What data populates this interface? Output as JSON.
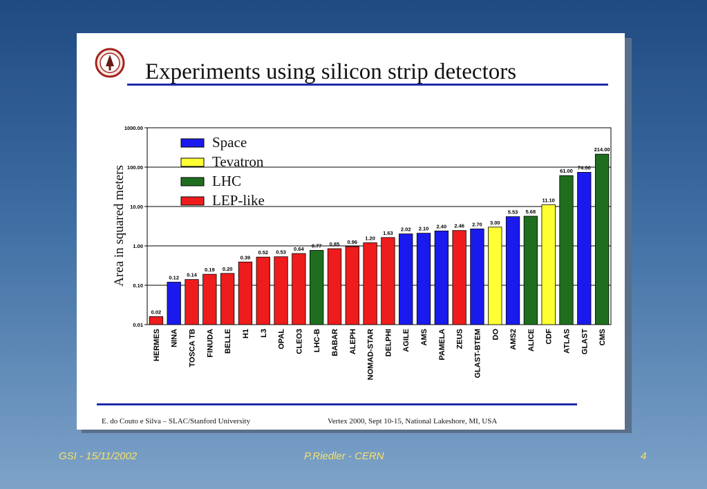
{
  "slide": {
    "title": "Experiments using silicon strip detectors",
    "credit_left": "E. do Couto e Silva – SLAC/Stanford University",
    "credit_right": "Vertex 2000,  Sept 10-15, National Lakeshore, MI, USA",
    "logo_icon": "stanford-seal-icon"
  },
  "footer": {
    "left": "GSI - 15/11/2002",
    "center": "P.Riedler - CERN",
    "right": "4"
  },
  "colors": {
    "Space": "#1a1aee",
    "Tevatron": "#ffff33",
    "LHC": "#1f6e1f",
    "LEP-like": "#ee1c1c"
  },
  "chart_data": {
    "type": "bar",
    "ylabel": "Area in squared meters",
    "xlabel": "",
    "yscale": "log",
    "ylim": [
      0.01,
      1000
    ],
    "y_ticks": [
      "0.01",
      "0.10",
      "1.00",
      "10.00",
      "100.00",
      "1000.00"
    ],
    "grid": "horizontal",
    "legend": {
      "placement": "top-left",
      "entries": [
        "Space",
        "Tevatron",
        "LHC",
        "LEP-like"
      ]
    },
    "bars": [
      {
        "name": "HERMES",
        "value": 0.016,
        "label": "0.02",
        "group": "LEP-like"
      },
      {
        "name": "NINA",
        "value": 0.12,
        "label": "0.12",
        "group": "Space"
      },
      {
        "name": "TOSCA TB",
        "value": 0.14,
        "label": "0.14",
        "group": "LEP-like"
      },
      {
        "name": "FINUDA",
        "value": 0.19,
        "label": "0.19",
        "group": "LEP-like"
      },
      {
        "name": "BELLE",
        "value": 0.2,
        "label": "0.20",
        "group": "LEP-like"
      },
      {
        "name": "H1",
        "value": 0.39,
        "label": "0.39",
        "group": "LEP-like"
      },
      {
        "name": "L3",
        "value": 0.52,
        "label": "0.52",
        "group": "LEP-like"
      },
      {
        "name": "OPAL",
        "value": 0.53,
        "label": "0.53",
        "group": "LEP-like"
      },
      {
        "name": "CLEO3",
        "value": 0.64,
        "label": "0.64",
        "group": "LEP-like"
      },
      {
        "name": "LHC-B",
        "value": 0.77,
        "label": "0.77",
        "group": "LHC"
      },
      {
        "name": "BABAR",
        "value": 0.85,
        "label": "0.85",
        "group": "LEP-like"
      },
      {
        "name": "ALEPH",
        "value": 0.96,
        "label": "0.96",
        "group": "LEP-like"
      },
      {
        "name": "NOMAD-STAR",
        "value": 1.2,
        "label": "1.20",
        "group": "LEP-like"
      },
      {
        "name": "DELPHI",
        "value": 1.63,
        "label": "1.63",
        "group": "LEP-like"
      },
      {
        "name": "AGILE",
        "value": 2.02,
        "label": "2.02",
        "group": "Space"
      },
      {
        "name": "AMS",
        "value": 2.1,
        "label": "2.10",
        "group": "Space"
      },
      {
        "name": "PAMELA",
        "value": 2.4,
        "label": "2.40",
        "group": "Space"
      },
      {
        "name": "ZEUS",
        "value": 2.46,
        "label": "2.46",
        "group": "LEP-like"
      },
      {
        "name": "GLAST-BTEM",
        "value": 2.7,
        "label": "2.70",
        "group": "Space"
      },
      {
        "name": "DO",
        "value": 3.0,
        "label": "3.00",
        "group": "Tevatron"
      },
      {
        "name": "AMS2",
        "value": 5.53,
        "label": "5.53",
        "group": "Space"
      },
      {
        "name": "ALICE",
        "value": 5.68,
        "label": "5.68",
        "group": "LHC"
      },
      {
        "name": "CDF",
        "value": 11.1,
        "label": "11.10",
        "group": "Tevatron"
      },
      {
        "name": "ATLAS",
        "value": 61.0,
        "label": "61.00",
        "group": "LHC"
      },
      {
        "name": "GLAST",
        "value": 74.0,
        "label": "74.00",
        "group": "Space"
      },
      {
        "name": "CMS",
        "value": 214.0,
        "label": "214.00",
        "group": "LHC"
      }
    ]
  }
}
